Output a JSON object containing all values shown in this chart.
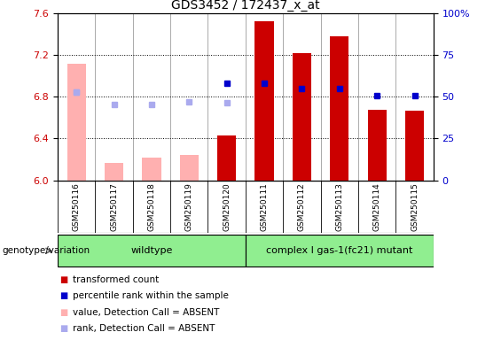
{
  "title": "GDS3452 / 172437_x_at",
  "samples": [
    "GSM250116",
    "GSM250117",
    "GSM250118",
    "GSM250119",
    "GSM250120",
    "GSM250111",
    "GSM250112",
    "GSM250113",
    "GSM250114",
    "GSM250115"
  ],
  "ylim_left": [
    6.0,
    7.6
  ],
  "ylim_right": [
    0,
    100
  ],
  "yticks_left": [
    6.0,
    6.4,
    6.8,
    7.2,
    7.6
  ],
  "yticks_right": [
    0,
    25,
    50,
    75,
    100
  ],
  "ytick_labels_right": [
    "0",
    "25",
    "50",
    "75",
    "100%"
  ],
  "transformed_count_present": [
    null,
    null,
    null,
    null,
    6.43,
    7.53,
    7.22,
    7.38,
    6.68,
    6.67
  ],
  "transformed_count_absent": [
    7.12,
    6.17,
    6.22,
    6.24,
    null,
    null,
    null,
    null,
    null,
    null
  ],
  "percentile_rank_present": [
    null,
    null,
    null,
    null,
    6.93,
    6.93,
    6.88,
    6.88,
    6.81,
    6.81
  ],
  "percentile_rank_absent_val": [
    6.85,
    null,
    null,
    null,
    null,
    null,
    null,
    null,
    null,
    null
  ],
  "rank_absent": [
    6.85,
    6.73,
    6.73,
    6.75,
    6.74,
    null,
    null,
    null,
    null,
    null
  ],
  "bar_width": 0.5,
  "color_tc_present": "#CC0000",
  "color_tc_absent": "#FFB0B0",
  "color_pr_present": "#0000CC",
  "color_pr_absent": "#AAAAEE",
  "color_rank_absent": "#AAAAEE",
  "background_color": "#ffffff",
  "ylabel_left_color": "#CC0000",
  "ylabel_right_color": "#0000CC",
  "group_wildtype_label": "wildtype",
  "group_mutant_label": "complex I gas-1(fc21) mutant",
  "group_color": "#90EE90",
  "legend_items": [
    [
      "#CC0000",
      "transformed count"
    ],
    [
      "#0000CC",
      "percentile rank within the sample"
    ],
    [
      "#FFB0B0",
      "value, Detection Call = ABSENT"
    ],
    [
      "#AAAAEE",
      "rank, Detection Call = ABSENT"
    ]
  ],
  "genotype_label": "genotype/variation"
}
